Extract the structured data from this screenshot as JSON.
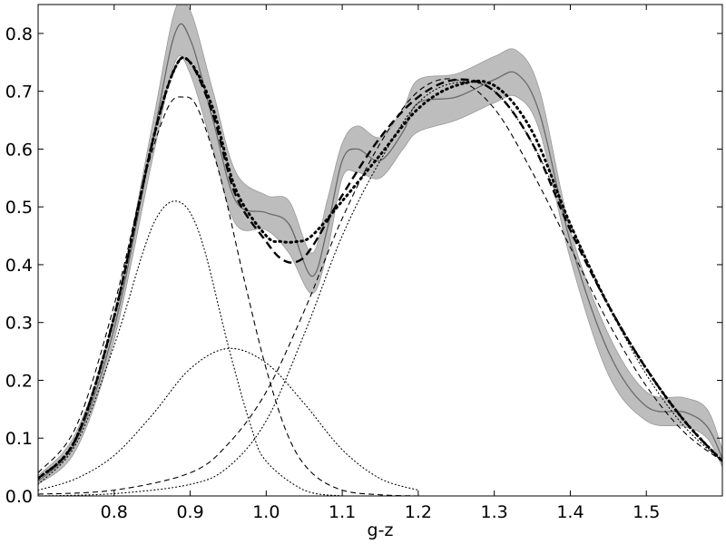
{
  "chart_data": {
    "type": "line",
    "title": "",
    "xlabel": "g-z",
    "ylabel": "",
    "xlim": [
      0.7,
      1.6
    ],
    "ylim": [
      0.0,
      0.85
    ],
    "grid": false,
    "legend": "none",
    "x_ticks": [
      "0.8",
      "0.9",
      "1.0",
      "1.1",
      "1.2",
      "1.3",
      "1.4",
      "1.5"
    ],
    "y_ticks": [
      "0.0",
      "0.1",
      "0.2",
      "0.3",
      "0.4",
      "0.5",
      "0.6",
      "0.7",
      "0.8"
    ],
    "band": {
      "color": "#bdbdbd",
      "x": [
        0.7,
        0.75,
        0.8,
        0.85,
        0.88,
        0.9,
        0.93,
        0.96,
        1.0,
        1.03,
        1.06,
        1.08,
        1.1,
        1.12,
        1.15,
        1.18,
        1.2,
        1.25,
        1.3,
        1.33,
        1.36,
        1.4,
        1.45,
        1.5,
        1.55,
        1.58,
        1.6
      ],
      "upper": [
        0.035,
        0.11,
        0.31,
        0.64,
        0.84,
        0.84,
        0.7,
        0.56,
        0.52,
        0.51,
        0.42,
        0.51,
        0.61,
        0.64,
        0.62,
        0.67,
        0.72,
        0.73,
        0.76,
        0.77,
        0.7,
        0.46,
        0.28,
        0.18,
        0.17,
        0.15,
        0.08
      ],
      "lower": [
        0.02,
        0.08,
        0.27,
        0.58,
        0.75,
        0.73,
        0.6,
        0.47,
        0.46,
        0.42,
        0.35,
        0.42,
        0.55,
        0.56,
        0.55,
        0.6,
        0.63,
        0.65,
        0.68,
        0.69,
        0.63,
        0.41,
        0.21,
        0.13,
        0.12,
        0.1,
        0.05
      ]
    },
    "series": [
      {
        "style": "solid-gray",
        "x": [
          0.7,
          0.75,
          0.8,
          0.85,
          0.88,
          0.9,
          0.93,
          0.96,
          1.0,
          1.03,
          1.06,
          1.08,
          1.1,
          1.12,
          1.15,
          1.18,
          1.2,
          1.25,
          1.3,
          1.33,
          1.36,
          1.4,
          1.45,
          1.5,
          1.55,
          1.58,
          1.6
        ],
        "y": [
          0.025,
          0.095,
          0.29,
          0.61,
          0.8,
          0.79,
          0.65,
          0.51,
          0.49,
          0.47,
          0.38,
          0.46,
          0.58,
          0.6,
          0.58,
          0.63,
          0.68,
          0.69,
          0.72,
          0.73,
          0.66,
          0.44,
          0.25,
          0.155,
          0.145,
          0.12,
          0.065
        ]
      },
      {
        "style": "heavy-dashed",
        "x": [
          0.7,
          0.75,
          0.8,
          0.85,
          0.88,
          0.9,
          0.93,
          0.96,
          1.0,
          1.02,
          1.04,
          1.06,
          1.1,
          1.15,
          1.2,
          1.25,
          1.3,
          1.35,
          1.4,
          1.45,
          1.5,
          1.55,
          1.6
        ],
        "y": [
          0.03,
          0.1,
          0.31,
          0.61,
          0.74,
          0.75,
          0.66,
          0.52,
          0.44,
          0.41,
          0.405,
          0.43,
          0.52,
          0.62,
          0.69,
          0.72,
          0.7,
          0.61,
          0.46,
          0.33,
          0.22,
          0.13,
          0.06
        ]
      },
      {
        "style": "heavy-dotted",
        "x": [
          0.7,
          0.75,
          0.8,
          0.85,
          0.88,
          0.9,
          0.93,
          0.96,
          1.0,
          1.02,
          1.04,
          1.06,
          1.1,
          1.15,
          1.2,
          1.25,
          1.3,
          1.35,
          1.4,
          1.45,
          1.5,
          1.55,
          1.6
        ],
        "y": [
          0.03,
          0.1,
          0.31,
          0.61,
          0.74,
          0.75,
          0.67,
          0.53,
          0.45,
          0.44,
          0.44,
          0.45,
          0.51,
          0.59,
          0.67,
          0.71,
          0.71,
          0.63,
          0.47,
          0.33,
          0.22,
          0.13,
          0.06
        ]
      },
      {
        "style": "thin-dashed",
        "x": [
          0.7,
          0.75,
          0.8,
          0.84,
          0.87,
          0.89,
          0.91,
          0.94,
          0.97,
          1.0,
          1.03,
          1.06,
          1.1,
          1.15,
          1.2
        ],
        "y": [
          0.04,
          0.12,
          0.33,
          0.55,
          0.67,
          0.69,
          0.67,
          0.55,
          0.38,
          0.22,
          0.1,
          0.04,
          0.01,
          0.002,
          0.0
        ]
      },
      {
        "style": "thin-dashed",
        "x": [
          0.7,
          0.8,
          0.9,
          0.95,
          1.0,
          1.05,
          1.1,
          1.15,
          1.2,
          1.25,
          1.3,
          1.35,
          1.4,
          1.45,
          1.5,
          1.55,
          1.6
        ],
        "y": [
          0.003,
          0.01,
          0.04,
          0.09,
          0.18,
          0.32,
          0.48,
          0.61,
          0.7,
          0.72,
          0.67,
          0.56,
          0.43,
          0.3,
          0.19,
          0.11,
          0.06
        ]
      },
      {
        "style": "thin-dotted",
        "x": [
          0.7,
          0.75,
          0.8,
          0.84,
          0.86,
          0.88,
          0.9,
          0.92,
          0.95,
          0.98,
          1.0,
          1.05,
          1.1
        ],
        "y": [
          0.02,
          0.09,
          0.26,
          0.43,
          0.49,
          0.51,
          0.49,
          0.42,
          0.26,
          0.12,
          0.06,
          0.01,
          0.0
        ]
      },
      {
        "style": "thin-dotted",
        "x": [
          0.7,
          0.75,
          0.8,
          0.85,
          0.9,
          0.95,
          1.0,
          1.05,
          1.1,
          1.15,
          1.2
        ],
        "y": [
          0.01,
          0.03,
          0.07,
          0.14,
          0.22,
          0.255,
          0.23,
          0.16,
          0.08,
          0.03,
          0.01
        ]
      },
      {
        "style": "thin-dotted",
        "x": [
          0.7,
          0.8,
          0.9,
          0.95,
          1.0,
          1.05,
          1.1,
          1.15,
          1.2,
          1.25,
          1.3,
          1.35,
          1.4,
          1.45,
          1.5,
          1.55,
          1.6
        ],
        "y": [
          0.0,
          0.004,
          0.02,
          0.05,
          0.13,
          0.28,
          0.45,
          0.58,
          0.68,
          0.715,
          0.7,
          0.61,
          0.47,
          0.33,
          0.21,
          0.12,
          0.06
        ]
      }
    ]
  }
}
